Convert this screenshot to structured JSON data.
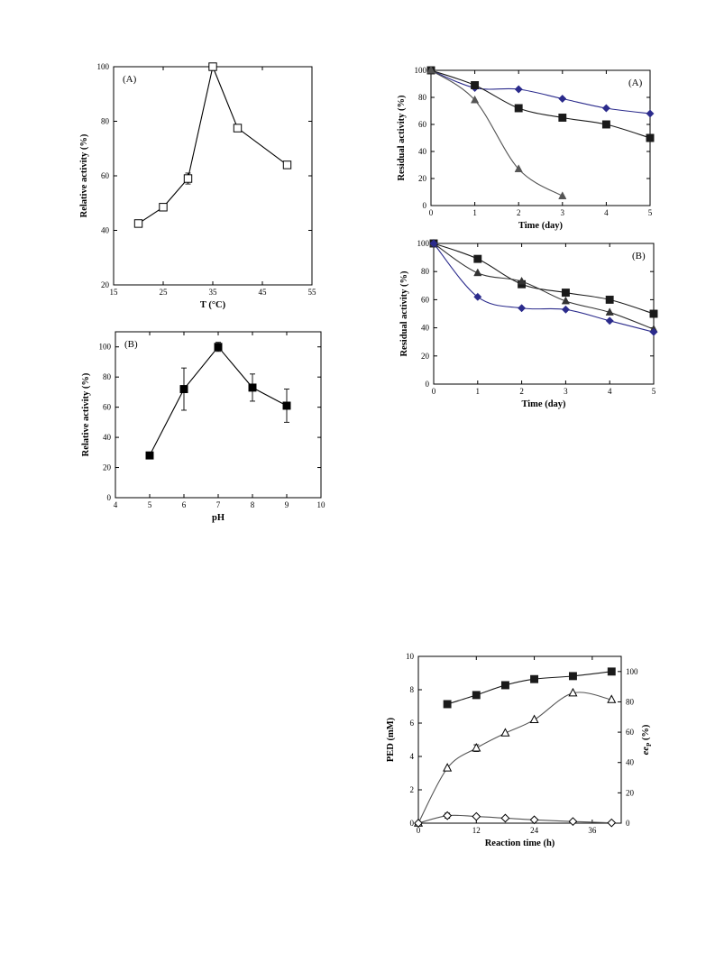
{
  "charts": {
    "temp": {
      "type": "line",
      "panel_label": "(A)",
      "xlabel": "T (°C)",
      "ylabel": "Relative activity (%)",
      "xlim": [
        15,
        55
      ],
      "ylim": [
        20,
        100
      ],
      "xticks": [
        15,
        25,
        35,
        45,
        55
      ],
      "yticks": [
        20,
        40,
        60,
        80,
        100
      ],
      "xtick_labels": [
        "15",
        "25",
        "35",
        "45",
        "55"
      ],
      "ytick_labels": [
        "20",
        "40",
        "60",
        "80",
        "100"
      ],
      "series": [
        {
          "marker": "open-square",
          "color": "#000000",
          "curve": "straight",
          "x": [
            20,
            25,
            30,
            35,
            40,
            50
          ],
          "y": [
            42.5,
            48.5,
            59,
            100,
            77.5,
            64
          ],
          "err": [
            0,
            0,
            2,
            0,
            0,
            0
          ]
        }
      ]
    },
    "ph": {
      "type": "line",
      "panel_label": "(B)",
      "xlabel": "pH",
      "ylabel": "Relative activity (%)",
      "xlim": [
        4,
        10
      ],
      "ylim": [
        0,
        110
      ],
      "xticks": [
        4,
        5,
        6,
        7,
        8,
        9,
        10
      ],
      "yticks": [
        0,
        20,
        40,
        60,
        80,
        100
      ],
      "xtick_labels": [
        "4",
        "5",
        "6",
        "7",
        "8",
        "9",
        "10"
      ],
      "ytick_labels": [
        "0",
        "20",
        "40",
        "60",
        "80",
        "100"
      ],
      "series": [
        {
          "marker": "filled-square",
          "color": "#000000",
          "curve": "straight",
          "x": [
            5,
            6,
            7,
            8,
            9
          ],
          "y": [
            28,
            72,
            100,
            73,
            61
          ],
          "err": [
            0,
            14,
            3,
            9,
            11
          ]
        }
      ]
    },
    "stabA": {
      "type": "line",
      "panel_label": "(A)",
      "xlabel": "Time (day)",
      "ylabel": "Residual activity (%)",
      "xlim": [
        0,
        5
      ],
      "ylim": [
        0,
        100
      ],
      "xticks": [
        0,
        1,
        2,
        3,
        4,
        5
      ],
      "yticks": [
        0,
        20,
        40,
        60,
        80,
        100
      ],
      "xtick_labels": [
        "0",
        "1",
        "2",
        "3",
        "4",
        "5"
      ],
      "ytick_labels": [
        "0",
        "20",
        "40",
        "60",
        "80",
        "100"
      ],
      "series": [
        {
          "marker": "filled-diamond",
          "color": "#2b2b8c",
          "curve": "smooth",
          "x": [
            0,
            1,
            2,
            3,
            4,
            5
          ],
          "y": [
            100,
            87,
            86,
            79,
            72,
            68
          ]
        },
        {
          "marker": "filled-square",
          "color": "#1a1a1a",
          "curve": "smooth",
          "x": [
            0,
            1,
            2,
            3,
            4,
            5
          ],
          "y": [
            100,
            89,
            72,
            65,
            60,
            50
          ]
        },
        {
          "marker": "filled-triangle",
          "color": "#555555",
          "curve": "smooth",
          "x": [
            0,
            1,
            2,
            3
          ],
          "y": [
            100,
            78,
            27,
            7
          ]
        }
      ]
    },
    "stabB": {
      "type": "line",
      "panel_label": "(B)",
      "xlabel": "Time (day)",
      "ylabel": "Residual activity (%)",
      "xlim": [
        0,
        5
      ],
      "ylim": [
        0,
        100
      ],
      "xticks": [
        0,
        1,
        2,
        3,
        4,
        5
      ],
      "yticks": [
        0,
        20,
        40,
        60,
        80,
        100
      ],
      "xtick_labels": [
        "0",
        "1",
        "2",
        "3",
        "4",
        "5"
      ],
      "ytick_labels": [
        "0",
        "20",
        "40",
        "60",
        "80",
        "100"
      ],
      "series": [
        {
          "marker": "filled-square",
          "color": "#1a1a1a",
          "curve": "smooth",
          "x": [
            0,
            1,
            2,
            3,
            4,
            5
          ],
          "y": [
            100,
            89,
            71,
            65,
            60,
            50
          ]
        },
        {
          "marker": "filled-triangle",
          "color": "#333333",
          "curve": "smooth",
          "x": [
            0,
            1,
            2,
            3,
            4,
            5
          ],
          "y": [
            100,
            79,
            73,
            59,
            51,
            39
          ]
        },
        {
          "marker": "filled-diamond",
          "color": "#2b2b8c",
          "curve": "smooth",
          "x": [
            0,
            1,
            2,
            3,
            4,
            5
          ],
          "y": [
            100,
            62,
            54,
            53,
            45,
            37
          ]
        }
      ]
    },
    "time": {
      "type": "line",
      "panel_label": "",
      "xlabel": "Reaction time (h)",
      "ylabel": "PED (mM)",
      "y2label": "ee",
      "y2label_sub": "P",
      "y2label_suffix": " (%)",
      "xlim": [
        0,
        42
      ],
      "ylim": [
        0,
        10
      ],
      "y2lim": [
        0,
        110
      ],
      "xticks": [
        0,
        12,
        24,
        36
      ],
      "yticks": [
        0,
        2,
        4,
        6,
        8,
        10
      ],
      "y2ticks": [
        0,
        20,
        40,
        60,
        80,
        100
      ],
      "xtick_labels": [
        "0",
        "12",
        "24",
        "36"
      ],
      "ytick_labels": [
        "0",
        "2",
        "4",
        "6",
        "8",
        "10"
      ],
      "y2tick_labels": [
        "0",
        "20",
        "40",
        "60",
        "80",
        "100"
      ],
      "series": [
        {
          "marker": "filled-square",
          "color": "#1a1a1a",
          "curve": "smooth",
          "axis": "right",
          "x": [
            6,
            12,
            18,
            24,
            32,
            40
          ],
          "y": [
            78.5,
            84.5,
            91,
            95,
            97,
            100
          ]
        },
        {
          "marker": "open-triangle",
          "color": "#555555",
          "curve": "smooth",
          "axis": "left",
          "x": [
            0,
            6,
            12,
            18,
            24,
            32,
            40
          ],
          "y": [
            0,
            3.3,
            4.5,
            5.4,
            6.2,
            7.8,
            7.4
          ],
          "err": [
            0,
            0,
            0.2,
            0,
            0,
            0,
            0
          ]
        },
        {
          "marker": "open-diamond",
          "color": "#555555",
          "curve": "smooth",
          "axis": "left",
          "x": [
            0,
            6,
            12,
            18,
            24,
            32,
            40
          ],
          "y": [
            0,
            0.45,
            0.4,
            0.3,
            0.2,
            0.1,
            0.02
          ],
          "err": [
            0,
            0.15,
            0,
            0,
            0,
            0,
            0
          ]
        }
      ]
    }
  }
}
